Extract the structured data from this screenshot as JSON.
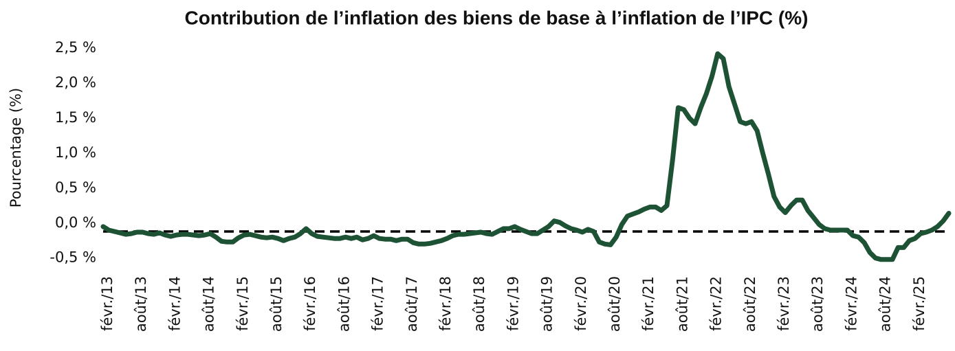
{
  "chart_data": {
    "type": "line",
    "title": "Contribution de l’inflation des biens de base à l’inflation de l’IPC (%)",
    "y_label": "Pourcentage (%)",
    "categories": [
      "févr./13",
      null,
      null,
      null,
      null,
      null,
      "août/13",
      null,
      null,
      null,
      null,
      null,
      "févr./14",
      null,
      null,
      null,
      null,
      null,
      "août/14",
      null,
      null,
      null,
      null,
      null,
      "févr./15",
      null,
      null,
      null,
      null,
      null,
      "août/15",
      null,
      null,
      null,
      null,
      null,
      "févr./16",
      null,
      null,
      null,
      null,
      null,
      "août/16",
      null,
      null,
      null,
      null,
      null,
      "févr./17",
      null,
      null,
      null,
      null,
      null,
      "août/17",
      null,
      null,
      null,
      null,
      null,
      "févr./18",
      null,
      null,
      null,
      null,
      null,
      "août/18",
      null,
      null,
      null,
      null,
      null,
      "févr./19",
      null,
      null,
      null,
      null,
      null,
      "août/19",
      null,
      null,
      null,
      null,
      null,
      "févr./20",
      null,
      null,
      null,
      null,
      null,
      "août/20",
      null,
      null,
      null,
      null,
      null,
      "févr./21",
      null,
      null,
      null,
      null,
      null,
      "août/21",
      null,
      null,
      null,
      null,
      null,
      "févr./22",
      null,
      null,
      null,
      null,
      null,
      "août/22",
      null,
      null,
      null,
      null,
      null,
      "févr./23",
      null,
      null,
      null,
      null,
      null,
      "août/23",
      null,
      null,
      null,
      null,
      null,
      "févr./24",
      null,
      null,
      null,
      null,
      null,
      "août/24",
      null,
      null,
      null,
      null,
      null,
      "févr./25",
      null,
      null,
      null,
      null,
      null,
      null
    ],
    "series": [
      {
        "name": "Contribution",
        "color": "#1e5235",
        "values": [
          -0.05,
          -0.1,
          -0.12,
          -0.14,
          -0.16,
          -0.15,
          -0.13,
          -0.13,
          -0.15,
          -0.16,
          -0.14,
          -0.17,
          -0.19,
          -0.17,
          -0.16,
          -0.16,
          -0.17,
          -0.18,
          -0.17,
          -0.15,
          -0.2,
          -0.26,
          -0.27,
          -0.27,
          -0.21,
          -0.17,
          -0.16,
          -0.18,
          -0.2,
          -0.21,
          -0.2,
          -0.22,
          -0.25,
          -0.22,
          -0.2,
          -0.15,
          -0.08,
          -0.15,
          -0.19,
          -0.2,
          -0.21,
          -0.22,
          -0.22,
          -0.2,
          -0.22,
          -0.2,
          -0.24,
          -0.22,
          -0.18,
          -0.22,
          -0.23,
          -0.23,
          -0.25,
          -0.23,
          -0.23,
          -0.28,
          -0.3,
          -0.3,
          -0.29,
          -0.27,
          -0.25,
          -0.22,
          -0.18,
          -0.16,
          -0.16,
          -0.15,
          -0.14,
          -0.13,
          -0.15,
          -0.16,
          -0.12,
          -0.08,
          -0.08,
          -0.05,
          -0.09,
          -0.12,
          -0.15,
          -0.15,
          -0.1,
          -0.05,
          0.03,
          0.01,
          -0.04,
          -0.08,
          -0.1,
          -0.13,
          -0.09,
          -0.12,
          -0.27,
          -0.3,
          -0.31,
          -0.2,
          -0.02,
          0.1,
          0.13,
          0.16,
          0.2,
          0.23,
          0.23,
          0.18,
          0.25,
          0.9,
          1.65,
          1.62,
          1.5,
          1.42,
          1.65,
          1.85,
          2.1,
          2.42,
          2.35,
          1.95,
          1.7,
          1.45,
          1.42,
          1.45,
          1.32,
          1.0,
          0.7,
          0.38,
          0.23,
          0.15,
          0.25,
          0.33,
          0.33,
          0.18,
          0.08,
          -0.02,
          -0.08,
          -0.1,
          -0.1,
          -0.1,
          -0.1,
          -0.18,
          -0.2,
          -0.28,
          -0.42,
          -0.5,
          -0.52,
          -0.52,
          -0.52,
          -0.35,
          -0.35,
          -0.25,
          -0.22,
          -0.15,
          -0.13,
          -0.1,
          -0.05,
          0.03,
          0.14
        ]
      }
    ],
    "reference_line": -0.12,
    "ylim": [
      -0.65,
      2.55
    ],
    "yticks": [
      {
        "value": -0.5,
        "label": "-0,5 %"
      },
      {
        "value": 0,
        "label": "0,0 %"
      },
      {
        "value": 0.5,
        "label": "0,5 %"
      },
      {
        "value": 1,
        "label": "1,0 %"
      },
      {
        "value": 1.5,
        "label": "1,5 %"
      },
      {
        "value": 2,
        "label": "2,0 %"
      },
      {
        "value": 2.5,
        "label": "2,5 %"
      }
    ],
    "grid": false
  }
}
